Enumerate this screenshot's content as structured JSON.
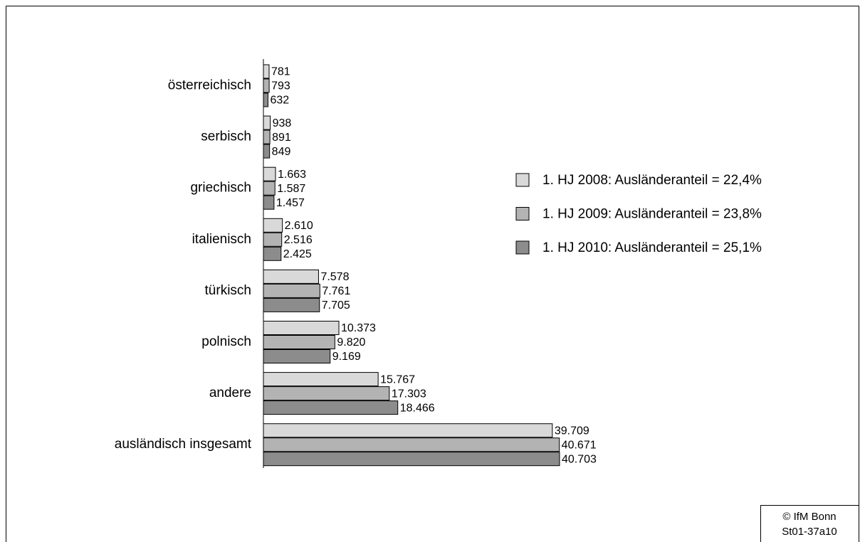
{
  "chart_data": {
    "type": "bar",
    "orientation": "horizontal",
    "categories": [
      "österreichisch",
      "serbisch",
      "griechisch",
      "italienisch",
      "türkisch",
      "polnisch",
      "andere",
      "ausländisch insgesamt"
    ],
    "series": [
      {
        "name": "1. HJ 2008: Ausländeranteil = 22,4%",
        "color": "#d9d9d9",
        "values": [
          781,
          938,
          1663,
          2610,
          7578,
          10373,
          15767,
          39709
        ],
        "value_labels": [
          "781",
          "938",
          "1.663",
          "2.610",
          "7.578",
          "10.373",
          "15.767",
          "39.709"
        ]
      },
      {
        "name": "1. HJ 2009: Ausländeranteil = 23,8%",
        "color": "#b3b3b3",
        "values": [
          793,
          891,
          1587,
          2516,
          7761,
          9820,
          17303,
          40671
        ],
        "value_labels": [
          "793",
          "891",
          "1.587",
          "2.516",
          "7.761",
          "9.820",
          "17.303",
          "40.671"
        ]
      },
      {
        "name": "1. HJ 2010: Ausländeranteil = 25,1%",
        "color": "#8c8c8c",
        "values": [
          632,
          849,
          1457,
          2425,
          7705,
          9169,
          18466,
          40703
        ],
        "value_labels": [
          "632",
          "849",
          "1.457",
          "2.425",
          "7.705",
          "9.169",
          "18.466",
          "40.703"
        ]
      }
    ],
    "source_lines": [
      "© IfM Bonn",
      "St01-37a10"
    ]
  }
}
